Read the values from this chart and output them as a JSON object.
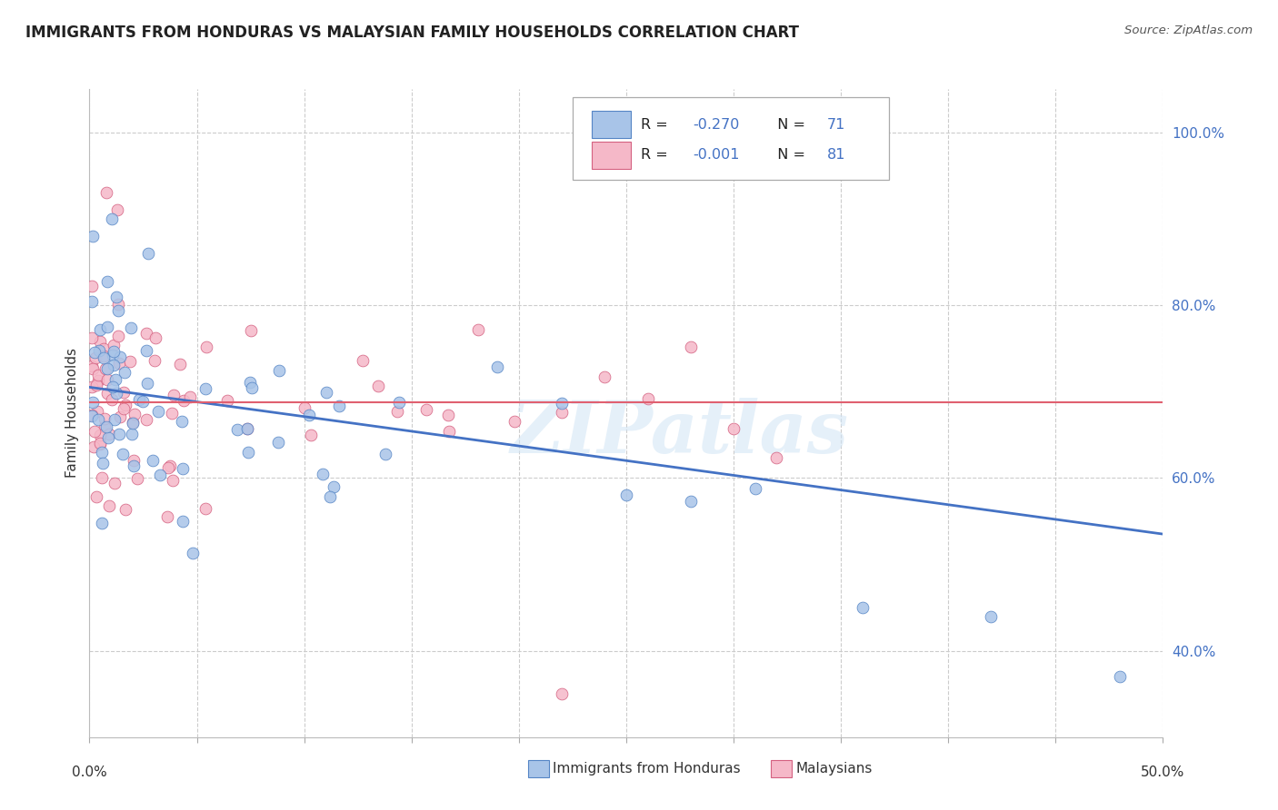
{
  "title": "IMMIGRANTS FROM HONDURAS VS MALAYSIAN FAMILY HOUSEHOLDS CORRELATION CHART",
  "source": "Source: ZipAtlas.com",
  "ylabel": "Family Households",
  "legend_label_blue": "Immigrants from Honduras",
  "legend_label_pink": "Malaysians",
  "watermark": "ZIPatlas",
  "blue_color": "#a8c4e8",
  "pink_color": "#f5b8c8",
  "trend_blue_color": "#4472c4",
  "trend_pink_color": "#e06070",
  "blue_edge": "#5585c5",
  "pink_edge": "#d46080",
  "xlim": [
    0.0,
    0.5
  ],
  "ylim": [
    0.3,
    1.05
  ],
  "right_yticks": [
    0.4,
    0.6,
    0.8,
    1.0
  ],
  "right_yticklabels": [
    "40.0%",
    "60.0%",
    "80.0%",
    "100.0%"
  ],
  "grid_color": "#cccccc",
  "blue_trend_x0": 0.0,
  "blue_trend_x1": 0.5,
  "blue_trend_y0": 0.705,
  "blue_trend_y1": 0.535,
  "pink_trend_y": 0.688
}
